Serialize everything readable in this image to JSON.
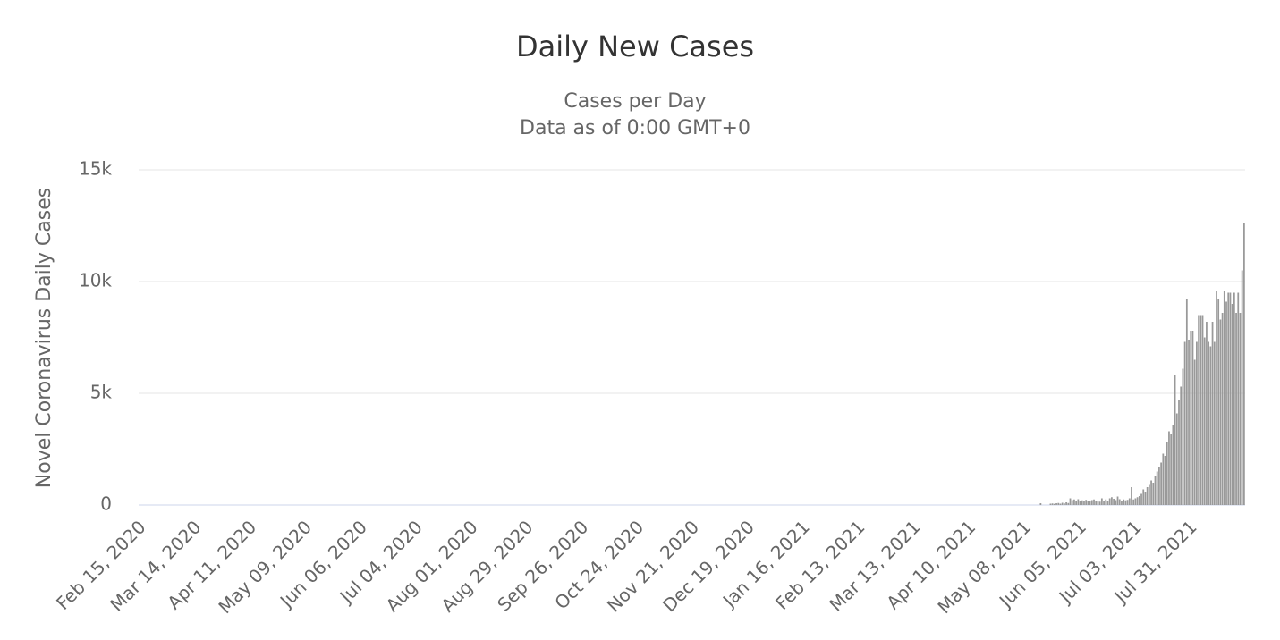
{
  "chart_data": {
    "type": "bar",
    "title": "Daily New Cases",
    "subtitle": [
      "Cases per Day",
      "Data as of 0:00 GMT+0"
    ],
    "y_label": "Novel Coronavirus Daily Cases",
    "color": "#999999",
    "grid": true,
    "ylim": [
      0,
      15000
    ],
    "yticks": [
      0,
      {
        "value": 5000,
        "label": "5k"
      },
      {
        "value": 10000,
        "label": "10k"
      },
      {
        "value": 15000,
        "label": "15k"
      }
    ],
    "categories": [
      "Feb 15, 2020",
      null,
      null,
      null,
      null,
      null,
      null,
      null,
      null,
      null,
      null,
      null,
      null,
      null,
      null,
      null,
      null,
      null,
      null,
      null,
      null,
      null,
      null,
      null,
      null,
      null,
      null,
      null,
      "Mar 14, 2020",
      null,
      null,
      null,
      null,
      null,
      null,
      null,
      null,
      null,
      null,
      null,
      null,
      null,
      null,
      null,
      null,
      null,
      null,
      null,
      null,
      null,
      null,
      null,
      null,
      null,
      null,
      null,
      "Apr 11, 2020",
      null,
      null,
      null,
      null,
      null,
      null,
      null,
      null,
      null,
      null,
      null,
      null,
      null,
      null,
      null,
      null,
      null,
      null,
      null,
      null,
      null,
      null,
      null,
      null,
      null,
      null,
      null,
      "May 09, 2020",
      null,
      null,
      null,
      null,
      null,
      null,
      null,
      null,
      null,
      null,
      null,
      null,
      null,
      null,
      null,
      null,
      null,
      null,
      null,
      null,
      null,
      null,
      null,
      null,
      null,
      null,
      null,
      "Jun 06, 2020",
      null,
      null,
      null,
      null,
      null,
      null,
      null,
      null,
      null,
      null,
      null,
      null,
      null,
      null,
      null,
      null,
      null,
      null,
      null,
      null,
      null,
      null,
      null,
      null,
      null,
      null,
      null,
      "Jul 04, 2020",
      null,
      null,
      null,
      null,
      null,
      null,
      null,
      null,
      null,
      null,
      null,
      null,
      null,
      null,
      null,
      null,
      null,
      null,
      null,
      null,
      null,
      null,
      null,
      null,
      null,
      null,
      null,
      "Aug 01, 2020",
      null,
      null,
      null,
      null,
      null,
      null,
      null,
      null,
      null,
      null,
      null,
      null,
      null,
      null,
      null,
      null,
      null,
      null,
      null,
      null,
      null,
      null,
      null,
      null,
      null,
      null,
      null,
      "Aug 29, 2020",
      null,
      null,
      null,
      null,
      null,
      null,
      null,
      null,
      null,
      null,
      null,
      null,
      null,
      null,
      null,
      null,
      null,
      null,
      null,
      null,
      null,
      null,
      null,
      null,
      null,
      null,
      null,
      "Sep 26, 2020",
      null,
      null,
      null,
      null,
      null,
      null,
      null,
      null,
      null,
      null,
      null,
      null,
      null,
      null,
      null,
      null,
      null,
      null,
      null,
      null,
      null,
      null,
      null,
      null,
      null,
      null,
      null,
      "Oct 24, 2020",
      null,
      null,
      null,
      null,
      null,
      null,
      null,
      null,
      null,
      null,
      null,
      null,
      null,
      null,
      null,
      null,
      null,
      null,
      null,
      null,
      null,
      null,
      null,
      null,
      null,
      null,
      null,
      "Nov 21, 2020",
      null,
      null,
      null,
      null,
      null,
      null,
      null,
      null,
      null,
      null,
      null,
      null,
      null,
      null,
      null,
      null,
      null,
      null,
      null,
      null,
      null,
      null,
      null,
      null,
      null,
      null,
      null,
      "Dec 19, 2020",
      null,
      null,
      null,
      null,
      null,
      null,
      null,
      null,
      null,
      null,
      null,
      null,
      null,
      null,
      null,
      null,
      null,
      null,
      null,
      null,
      null,
      null,
      null,
      null,
      null,
      null,
      null,
      "Jan 16, 2021",
      null,
      null,
      null,
      null,
      null,
      null,
      null,
      null,
      null,
      null,
      null,
      null,
      null,
      null,
      null,
      null,
      null,
      null,
      null,
      null,
      null,
      null,
      null,
      null,
      null,
      null,
      null,
      "Feb 13, 2021",
      null,
      null,
      null,
      null,
      null,
      null,
      null,
      null,
      null,
      null,
      null,
      null,
      null,
      null,
      null,
      null,
      null,
      null,
      null,
      null,
      null,
      null,
      null,
      null,
      null,
      null,
      null,
      "Mar 13, 2021",
      null,
      null,
      null,
      null,
      null,
      null,
      null,
      null,
      null,
      null,
      null,
      null,
      null,
      null,
      null,
      null,
      null,
      null,
      null,
      null,
      null,
      null,
      null,
      null,
      null,
      null,
      null,
      "Apr 10, 2021",
      null,
      null,
      null,
      null,
      null,
      null,
      null,
      null,
      null,
      null,
      null,
      null,
      null,
      null,
      null,
      null,
      null,
      null,
      null,
      null,
      null,
      null,
      null,
      null,
      null,
      null,
      null,
      "May 08, 2021",
      null,
      null,
      null,
      null,
      null,
      null,
      null,
      null,
      null,
      null,
      null,
      null,
      null,
      null,
      null,
      null,
      null,
      null,
      null,
      null,
      null,
      null,
      null,
      null,
      null,
      null,
      null,
      "Jun 05, 2021",
      null,
      null,
      null,
      null,
      null,
      null,
      null,
      null,
      null,
      null,
      null,
      null,
      null,
      null,
      null,
      null,
      null,
      null,
      null,
      null,
      null,
      null,
      null,
      null,
      null,
      null,
      null,
      "Jul 03, 2021",
      null,
      null,
      null,
      null,
      null,
      null,
      null,
      null,
      null,
      null,
      null,
      null,
      null,
      null,
      null,
      null,
      null,
      null,
      null,
      null,
      null,
      null,
      null,
      null,
      null,
      null,
      null,
      "Jul 31, 2021",
      null,
      null,
      null,
      null,
      null,
      null,
      null,
      null,
      null,
      null,
      null,
      null,
      null,
      null,
      null,
      null,
      null,
      null,
      null,
      null,
      null,
      null,
      null,
      null,
      null,
      null,
      null
    ],
    "values": [
      0,
      0,
      0,
      0,
      0,
      0,
      0,
      0,
      0,
      0,
      0,
      0,
      0,
      0,
      0,
      0,
      0,
      0,
      0,
      0,
      0,
      0,
      0,
      0,
      0,
      0,
      0,
      0,
      0,
      0,
      0,
      0,
      0,
      0,
      0,
      0,
      0,
      0,
      0,
      0,
      0,
      0,
      0,
      0,
      0,
      0,
      0,
      0,
      0,
      0,
      0,
      0,
      0,
      0,
      0,
      0,
      0,
      0,
      0,
      0,
      0,
      0,
      0,
      0,
      0,
      0,
      0,
      0,
      0,
      0,
      0,
      0,
      0,
      0,
      0,
      0,
      0,
      0,
      0,
      0,
      0,
      0,
      0,
      0,
      0,
      0,
      0,
      0,
      0,
      0,
      0,
      0,
      0,
      0,
      0,
      0,
      0,
      0,
      0,
      0,
      0,
      0,
      0,
      0,
      0,
      0,
      0,
      0,
      0,
      0,
      0,
      0,
      0,
      0,
      0,
      0,
      0,
      0,
      0,
      0,
      0,
      0,
      0,
      0,
      0,
      0,
      0,
      0,
      0,
      0,
      0,
      0,
      0,
      0,
      0,
      0,
      0,
      0,
      0,
      0,
      0,
      0,
      0,
      0,
      0,
      0,
      0,
      0,
      0,
      0,
      0,
      0,
      0,
      0,
      0,
      0,
      0,
      0,
      0,
      0,
      0,
      0,
      0,
      0,
      0,
      0,
      0,
      0,
      0,
      0,
      0,
      0,
      0,
      0,
      0,
      0,
      0,
      0,
      0,
      0,
      0,
      0,
      0,
      0,
      0,
      0,
      0,
      0,
      0,
      0,
      0,
      0,
      0,
      0,
      0,
      0,
      0,
      0,
      0,
      0,
      0,
      0,
      0,
      0,
      0,
      0,
      0,
      0,
      0,
      0,
      0,
      0,
      0,
      0,
      0,
      0,
      0,
      0,
      0,
      0,
      0,
      0,
      0,
      0,
      0,
      0,
      0,
      0,
      0,
      0,
      0,
      0,
      0,
      0,
      0,
      0,
      0,
      0,
      0,
      0,
      0,
      0,
      0,
      0,
      0,
      0,
      0,
      0,
      0,
      0,
      0,
      0,
      0,
      0,
      0,
      0,
      0,
      0,
      0,
      0,
      0,
      0,
      0,
      0,
      0,
      0,
      0,
      0,
      0,
      0,
      0,
      0,
      0,
      0,
      0,
      0,
      0,
      0,
      0,
      0,
      0,
      0,
      0,
      0,
      0,
      0,
      0,
      0,
      0,
      0,
      0,
      0,
      0,
      0,
      0,
      0,
      0,
      0,
      0,
      0,
      0,
      0,
      0,
      0,
      0,
      0,
      0,
      0,
      0,
      0,
      0,
      0,
      0,
      0,
      0,
      0,
      0,
      0,
      0,
      0,
      0,
      0,
      0,
      0,
      0,
      0,
      0,
      0,
      0,
      0,
      0,
      0,
      0,
      0,
      0,
      0,
      0,
      0,
      0,
      0,
      0,
      0,
      0,
      0,
      0,
      0,
      0,
      0,
      0,
      0,
      0,
      0,
      0,
      0,
      0,
      0,
      0,
      0,
      0,
      0,
      0,
      0,
      0,
      0,
      0,
      0,
      0,
      0,
      0,
      0,
      0,
      0,
      0,
      0,
      0,
      0,
      0,
      0,
      0,
      0,
      0,
      0,
      0,
      0,
      0,
      0,
      0,
      0,
      0,
      0,
      0,
      0,
      0,
      0,
      0,
      0,
      0,
      0,
      0,
      0,
      0,
      0,
      0,
      0,
      0,
      0,
      0,
      0,
      0,
      0,
      0,
      0,
      0,
      0,
      0,
      0,
      0,
      0,
      0,
      0,
      0,
      0,
      0,
      0,
      0,
      0,
      0,
      0,
      0,
      0,
      0,
      0,
      0,
      0,
      0,
      0,
      0,
      0,
      0,
      0,
      0,
      0,
      0,
      0,
      0,
      0,
      0,
      0,
      0,
      0,
      0,
      0,
      0,
      0,
      0,
      0,
      80,
      0,
      0,
      0,
      0,
      60,
      70,
      50,
      80,
      90,
      60,
      100,
      70,
      120,
      90,
      300,
      220,
      250,
      180,
      260,
      200,
      210,
      190,
      230,
      200,
      180,
      220,
      250,
      200,
      170,
      150,
      300,
      180,
      250,
      200,
      300,
      350,
      280,
      220,
      380,
      260,
      200,
      250,
      210,
      230,
      300,
      800,
      250,
      300,
      350,
      400,
      500,
      700,
      600,
      800,
      900,
      1100,
      1000,
      1300,
      1500,
      1700,
      1900,
      2300,
      2200,
      2800,
      3300,
      3200,
      3600,
      5800,
      4100,
      4700,
      5300,
      6100,
      7300,
      9200,
      7400,
      7800,
      7800,
      6500,
      7300,
      8500,
      8500,
      8500,
      7500,
      8200,
      7300,
      7100,
      8200,
      7300,
      9600,
      9200,
      8300,
      8600,
      9600,
      9100,
      9500,
      9500,
      9000,
      9500,
      8600,
      9500,
      8600,
      10500,
      12600
    ]
  }
}
